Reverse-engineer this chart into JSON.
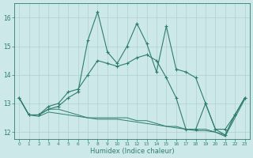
{
  "x": [
    0,
    1,
    2,
    3,
    4,
    5,
    6,
    7,
    8,
    9,
    10,
    11,
    12,
    13,
    14,
    15,
    16,
    17,
    18,
    19,
    20,
    21,
    22,
    23
  ],
  "line1": [
    13.2,
    12.6,
    12.6,
    12.8,
    12.9,
    13.2,
    13.4,
    15.2,
    16.2,
    14.8,
    14.4,
    15.0,
    15.8,
    15.1,
    14.1,
    15.7,
    14.2,
    14.1,
    13.9,
    13.0,
    12.1,
    11.9,
    12.6,
    13.2
  ],
  "line2": [
    13.2,
    12.6,
    12.6,
    12.9,
    13.0,
    13.4,
    13.5,
    14.0,
    14.5,
    14.4,
    14.3,
    14.4,
    14.6,
    14.7,
    14.5,
    13.9,
    13.2,
    12.1,
    12.1,
    13.0,
    12.1,
    12.1,
    12.6,
    13.2
  ],
  "line3": [
    13.2,
    12.6,
    12.6,
    12.8,
    12.8,
    12.7,
    12.6,
    12.5,
    12.5,
    12.5,
    12.5,
    12.5,
    12.4,
    12.4,
    12.3,
    12.2,
    12.2,
    12.1,
    12.1,
    12.1,
    12.0,
    11.9,
    12.6,
    13.2
  ],
  "line4": [
    13.2,
    12.6,
    12.55,
    12.7,
    12.65,
    12.6,
    12.55,
    12.5,
    12.45,
    12.45,
    12.45,
    12.4,
    12.35,
    12.3,
    12.25,
    12.2,
    12.15,
    12.1,
    12.05,
    12.05,
    12.0,
    11.85,
    12.5,
    13.15
  ],
  "color": "#2e7d6e",
  "bg_color": "#cce8e8",
  "grid_color": "#b0d0d0",
  "xlabel": "Humidex (Indice chaleur)",
  "ylim": [
    11.75,
    16.5
  ],
  "xlim": [
    -0.5,
    23.5
  ],
  "yticks": [
    12,
    13,
    14,
    15,
    16
  ],
  "xticks": [
    0,
    1,
    2,
    3,
    4,
    5,
    6,
    7,
    8,
    9,
    10,
    11,
    12,
    13,
    14,
    15,
    16,
    17,
    18,
    19,
    20,
    21,
    22,
    23
  ]
}
